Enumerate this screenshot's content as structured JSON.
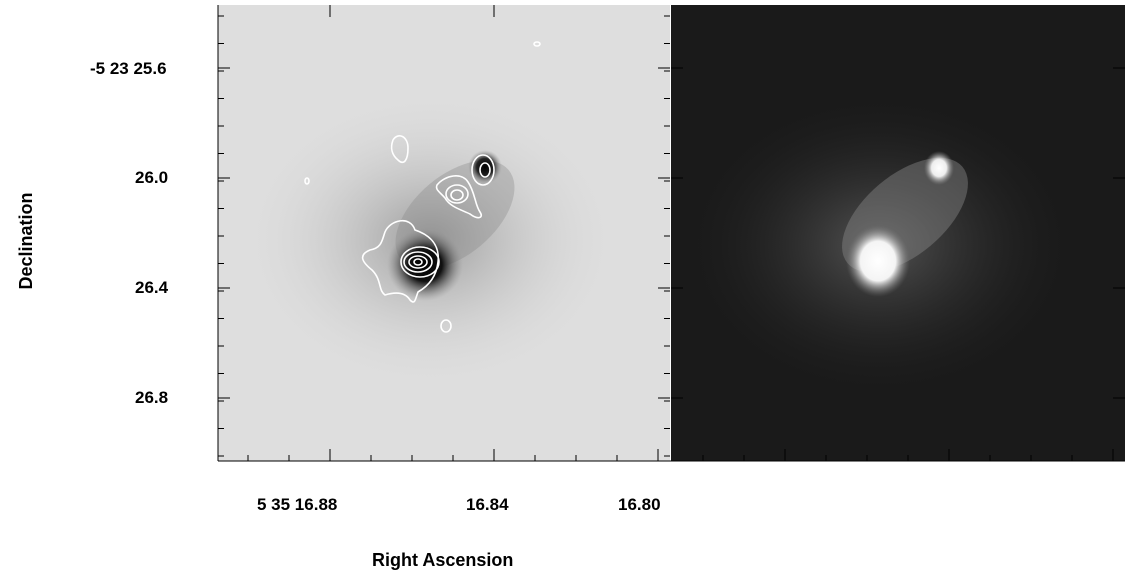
{
  "figure": {
    "xlabel": "Right Ascension",
    "ylabel": "Declination",
    "yticks": [
      "-5 23 25.6",
      "26.0",
      "26.4",
      "26.8"
    ],
    "xticks": [
      "5 35 16.88",
      "16.84",
      "16.80"
    ],
    "left_panel": {
      "background": "#dedede",
      "contour_color": "#ffffff",
      "source_color": "#000000"
    },
    "right_panel": {
      "background": "#1a1a1a",
      "source_color": "#ffffff"
    }
  }
}
